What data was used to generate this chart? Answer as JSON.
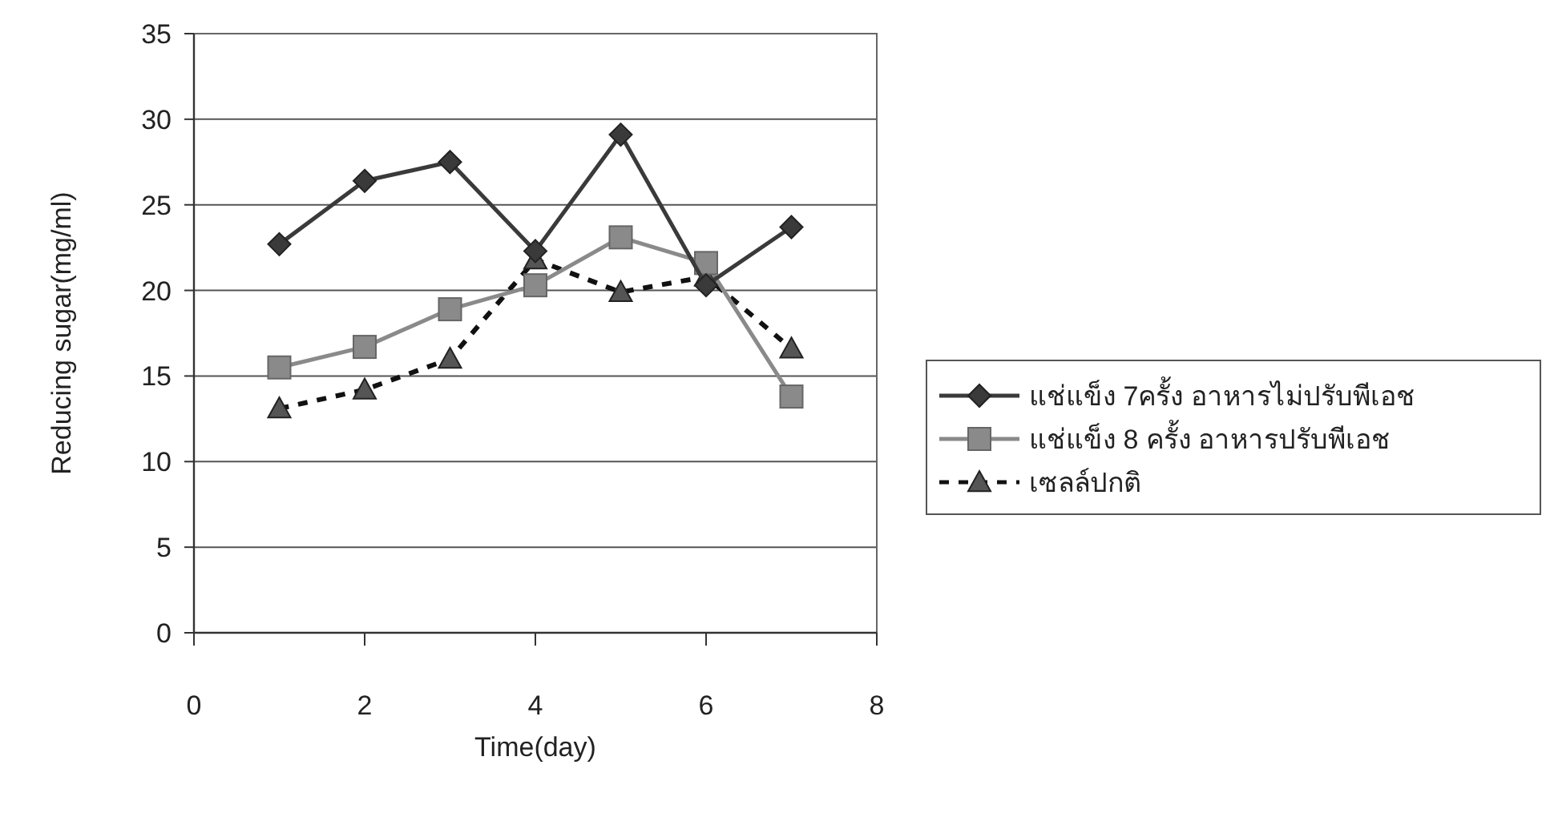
{
  "chart_data": {
    "type": "line",
    "xlabel": "Time(day)",
    "ylabel": "Reducing sugar(mg/ml)",
    "xlim": [
      0,
      8
    ],
    "xticks": [
      0,
      2,
      4,
      6,
      8
    ],
    "ylim": [
      0,
      35
    ],
    "yticks": [
      0,
      5,
      10,
      15,
      20,
      25,
      30,
      35
    ],
    "grid": "y",
    "legend": "right",
    "series": [
      {
        "name": "แช่แข็ง 7ครั้ง  อาหารไม่ปรับพีเอช",
        "color": "#3a3a3a",
        "marker": "diamond",
        "line_style": "solid",
        "x": [
          1,
          2,
          3,
          4,
          5,
          6,
          7
        ],
        "values": [
          22.7,
          26.4,
          27.5,
          22.3,
          29.1,
          20.3,
          23.7
        ]
      },
      {
        "name": "แช่แข็ง 8 ครั้ง อาหารปรับพีเอช",
        "color": "#8a8a8a",
        "marker": "square",
        "line_style": "solid",
        "x": [
          1,
          2,
          3,
          4,
          5,
          6,
          7
        ],
        "values": [
          15.5,
          16.7,
          18.9,
          20.3,
          23.1,
          21.6,
          13.8
        ]
      },
      {
        "name": "เซลล์ปกติ",
        "color": "#555555",
        "marker": "triangle",
        "line_style": "dashed",
        "x": [
          1,
          2,
          3,
          4,
          5,
          6,
          7
        ],
        "values": [
          13.1,
          14.2,
          16.0,
          21.8,
          19.9,
          20.8,
          16.6
        ]
      }
    ]
  }
}
